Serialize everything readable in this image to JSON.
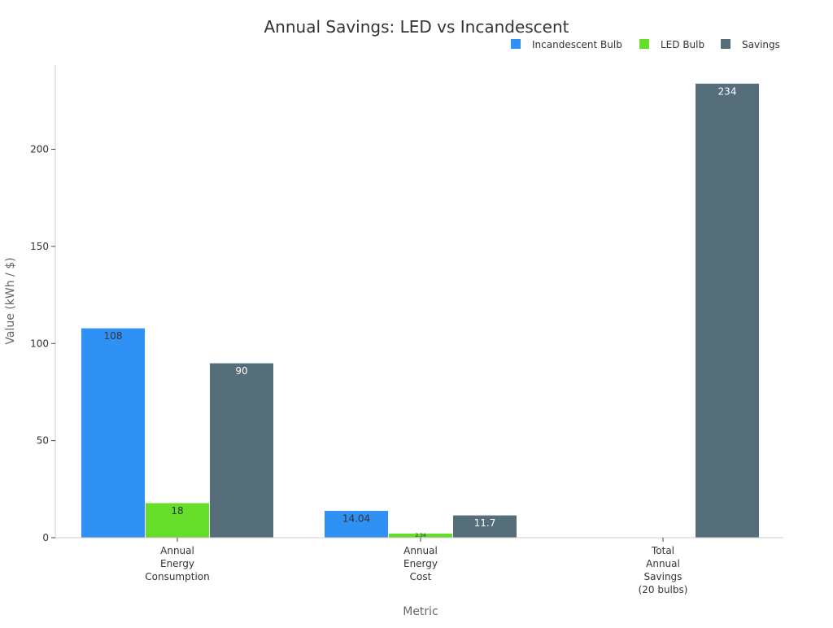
{
  "chart_data": {
    "type": "bar",
    "title": "Annual Savings: LED vs Incandescent",
    "xlabel": "Metric",
    "ylabel": "Value (kWh / $)",
    "ylim": [
      0,
      240
    ],
    "yticks": [
      0,
      50,
      100,
      150,
      200
    ],
    "grid": false,
    "legend_position": "top-right",
    "categories": [
      [
        "Annual",
        "Energy",
        "Consumption"
      ],
      [
        "Annual",
        "Energy",
        "Cost"
      ],
      [
        "Total",
        "Annual",
        "Savings",
        "(20 bulbs)"
      ]
    ],
    "series": [
      {
        "name": "Incandescent Bulb",
        "color": "#3091f5",
        "label_color": "#333333",
        "values": [
          108,
          14.04,
          null
        ],
        "labels": [
          "108",
          "14.04",
          null
        ]
      },
      {
        "name": "LED Bulb",
        "color": "#66dd28",
        "label_color": "#333333",
        "values": [
          18,
          2.34,
          null
        ],
        "labels": [
          "18",
          "2.34",
          null
        ]
      },
      {
        "name": "Savings",
        "color": "#566e79",
        "label_color": "#ffffff",
        "values": [
          90,
          11.7,
          234
        ],
        "labels": [
          "90",
          "11.7",
          "234"
        ]
      }
    ]
  }
}
